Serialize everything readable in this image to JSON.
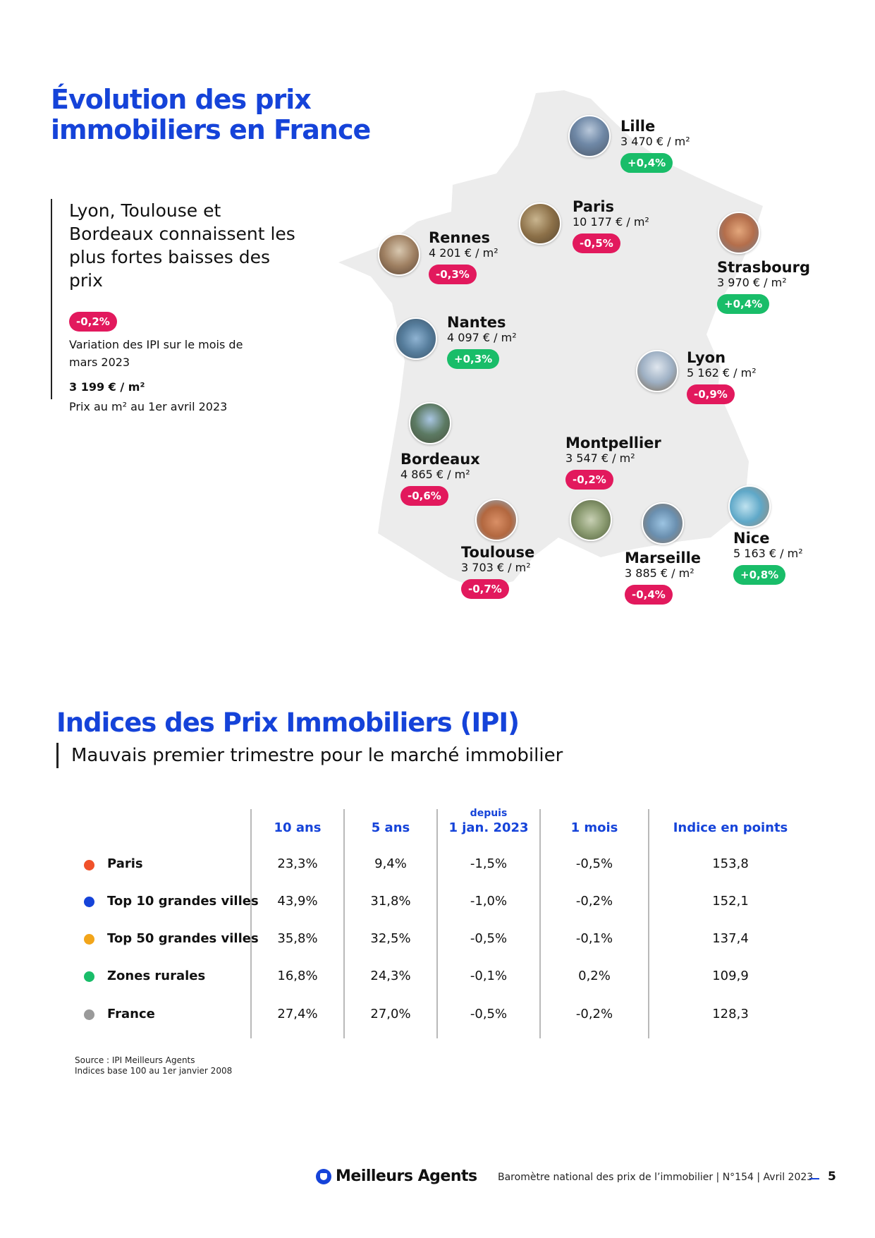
{
  "header": {
    "title_line1": "Évolution des prix",
    "title_line2": "immobiliers en France"
  },
  "intro": {
    "headline": "Lyon, Toulouse et Bordeaux connaissent les plus fortes baisses des prix",
    "variation_badge": "-0,2%",
    "variation_caption": "Variation des IPI sur le mois de mars 2023",
    "price": "3 199 € / m²",
    "price_caption": "Prix au m² au 1er avril 2023"
  },
  "map": {
    "cities": [
      {
        "name": "Lille",
        "price": "3 470 € / m²",
        "change": "+0,4%",
        "trend": "up"
      },
      {
        "name": "Paris",
        "price": "10 177 € / m²",
        "change": "-0,5%",
        "trend": "down"
      },
      {
        "name": "Rennes",
        "price": "4 201 € / m²",
        "change": "-0,3%",
        "trend": "down"
      },
      {
        "name": "Strasbourg",
        "price": "3 970 € / m²",
        "change": "+0,4%",
        "trend": "up"
      },
      {
        "name": "Nantes",
        "price": "4 097 € / m²",
        "change": "+0,3%",
        "trend": "up"
      },
      {
        "name": "Lyon",
        "price": "5 162 € / m²",
        "change": "-0,9%",
        "trend": "down"
      },
      {
        "name": "Montpellier",
        "price": "3 547 € / m²",
        "change": "-0,2%",
        "trend": "down"
      },
      {
        "name": "Bordeaux",
        "price": "4 865 € / m²",
        "change": "-0,6%",
        "trend": "down"
      },
      {
        "name": "Nice",
        "price": "5 163 € / m²",
        "change": "+0,8%",
        "trend": "up"
      },
      {
        "name": "Toulouse",
        "price": "3 703 € / m²",
        "change": "-0,7%",
        "trend": "down"
      },
      {
        "name": "Marseille",
        "price": "3 885 € / m²",
        "change": "-0,4%",
        "trend": "down"
      }
    ]
  },
  "ipi": {
    "title": "Indices des Prix Immobiliers (IPI)",
    "subtitle": "Mauvais premier trimestre pour le marché immobilier",
    "columns": [
      {
        "small": "",
        "label": "10 ans"
      },
      {
        "small": "",
        "label": "5 ans"
      },
      {
        "small": "depuis",
        "label": "1 jan. 2023"
      },
      {
        "small": "",
        "label": "1 mois"
      },
      {
        "small": "",
        "label": "Indice en points"
      }
    ],
    "rows": [
      {
        "label": "Paris",
        "dot_color": "#f0512a",
        "values": [
          "23,3%",
          "9,4%",
          "-1,5%",
          "-0,5%",
          "153,8"
        ]
      },
      {
        "label": "Top 10 grandes villes",
        "dot_color": "#1543d9",
        "values": [
          "43,9%",
          "31,8%",
          "-1,0%",
          "-0,2%",
          "152,1"
        ]
      },
      {
        "label": "Top 50 grandes villes",
        "dot_color": "#f2a51a",
        "values": [
          "35,8%",
          "32,5%",
          "-0,5%",
          "-0,1%",
          "137,4"
        ]
      },
      {
        "label": "Zones rurales",
        "dot_color": "#19bd69",
        "values": [
          "16,8%",
          "24,3%",
          "-0,1%",
          "0,2%",
          "109,9"
        ]
      },
      {
        "label": "France",
        "dot_color": "#9a9a9a",
        "values": [
          "27,4%",
          "27,0%",
          "-0,5%",
          "-0,2%",
          "128,3"
        ]
      }
    ],
    "source_line1": "Source : IPI Meilleurs Agents",
    "source_line2": "Indices base 100 au 1er janvier 2008"
  },
  "footer": {
    "logo": "Meilleurs Agents",
    "publication": "Baromètre national des prix de l’immobilier | N°154 | Avril 2023",
    "page_number": "5"
  },
  "colors": {
    "brand_blue": "#1543d9",
    "negative": "#e2195d",
    "positive": "#19bd69",
    "map_fill": "#ececec"
  }
}
